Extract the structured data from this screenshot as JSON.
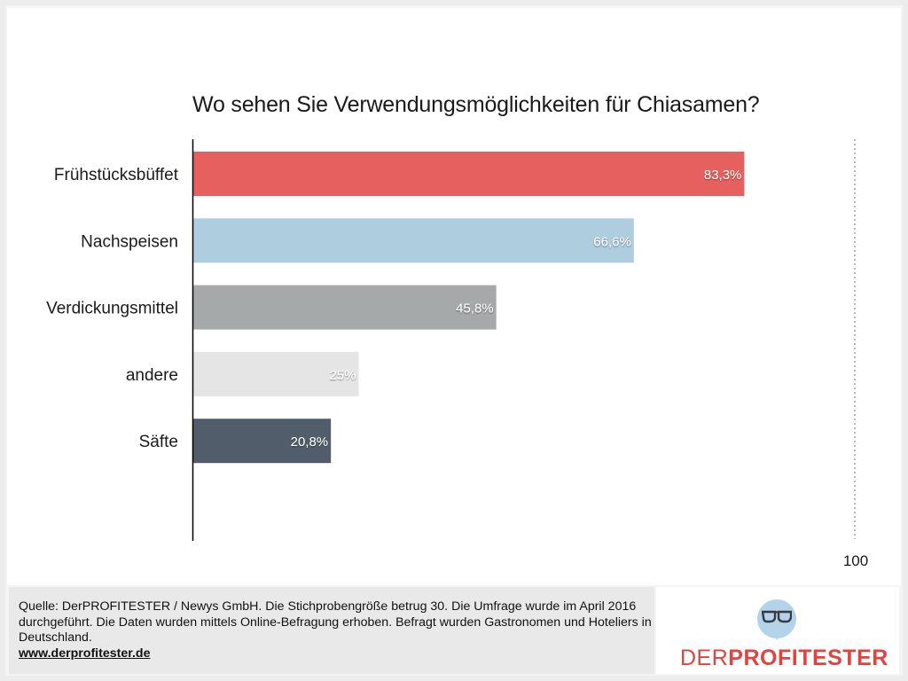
{
  "chart_data": {
    "type": "bar",
    "orientation": "horizontal",
    "title": "Wo sehen Sie Verwendungsmöglichkeiten für Chiasamen?",
    "categories": [
      "Frühstücksbüffet",
      "Nachspeisen",
      "Verdickungsmittel",
      "andere",
      "Säfte"
    ],
    "values": [
      83.3,
      66.6,
      45.8,
      25,
      20.8
    ],
    "data_labels": [
      "83,3%",
      "66,6%",
      "45,8%",
      "25%",
      "20,8%"
    ],
    "colors": [
      "#e5605e",
      "#aecddf",
      "#a6a9aa",
      "#e5e5e5",
      "#515d6a"
    ],
    "xlabel": "",
    "ylabel": "",
    "xlim": [
      0,
      100
    ],
    "x_tick_labels": [
      "100"
    ],
    "grid": false,
    "reference_line": {
      "value": 100,
      "style": "dotted"
    },
    "legend": "none"
  },
  "footer": {
    "source_text": "Quelle: DerPROFITESTER / Newys GmbH. Die Stichprobengröße betrug 30. Die Umfrage wurde im April 2016 durchgeführt. Die Daten wurden mittels Online-Befragung erhoben. Befragt wurden Gastronomen und Hoteliers in Deutschland.",
    "link": "www.derprofitester.de"
  },
  "logo": {
    "text_thin": "DER",
    "text_bold": "PROFITESTER",
    "icon": "glasses-speech-bubble-icon",
    "brand_color": "#e2433f",
    "bubble_color": "#b3d3ea"
  }
}
